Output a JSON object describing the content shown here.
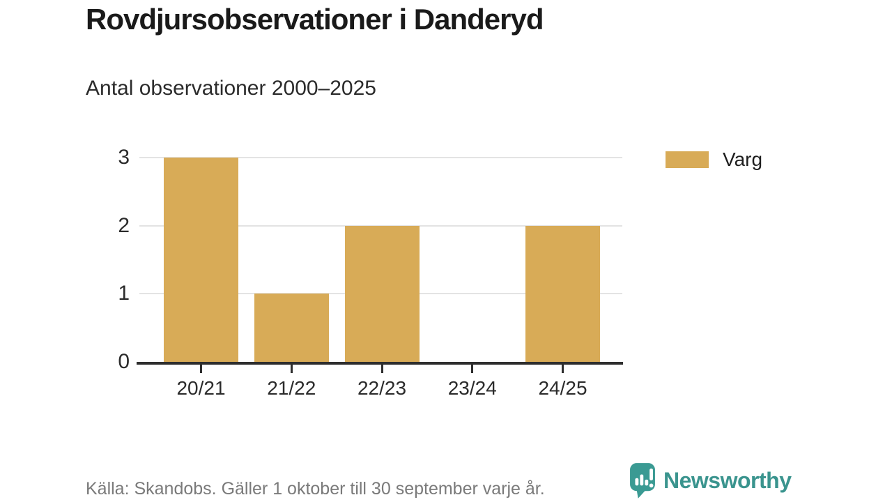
{
  "header": {
    "title": "Rovdjursobservationer i Danderyd",
    "subtitle": "Antal observationer 2000–2025"
  },
  "chart_data": {
    "type": "bar",
    "title": "Rovdjursobservationer i Danderyd",
    "subtitle": "Antal observationer 2000–2025",
    "categories": [
      "20/21",
      "21/22",
      "22/23",
      "23/24",
      "24/25"
    ],
    "series": [
      {
        "name": "Varg",
        "values": [
          3,
          1,
          2,
          0,
          2
        ],
        "color": "#d8ab57"
      }
    ],
    "xlabel": "",
    "ylabel": "",
    "ylim": [
      0,
      3
    ],
    "yticks": [
      0,
      1,
      2,
      3
    ],
    "grid": true,
    "legend_position": "right"
  },
  "footer": {
    "source": "Källa: Skandobs. Gäller 1 oktober till 30 september varje år.",
    "brand": "Newsworthy",
    "brand_color": "#3a948e"
  },
  "colors": {
    "bar": "#d8ab57",
    "accent_teal": "#3a948e",
    "icon_teal": "#3a9a93",
    "grid": "#e3e3e3",
    "axis": "#2e2e2e",
    "text_gray": "#7a7a7a"
  }
}
